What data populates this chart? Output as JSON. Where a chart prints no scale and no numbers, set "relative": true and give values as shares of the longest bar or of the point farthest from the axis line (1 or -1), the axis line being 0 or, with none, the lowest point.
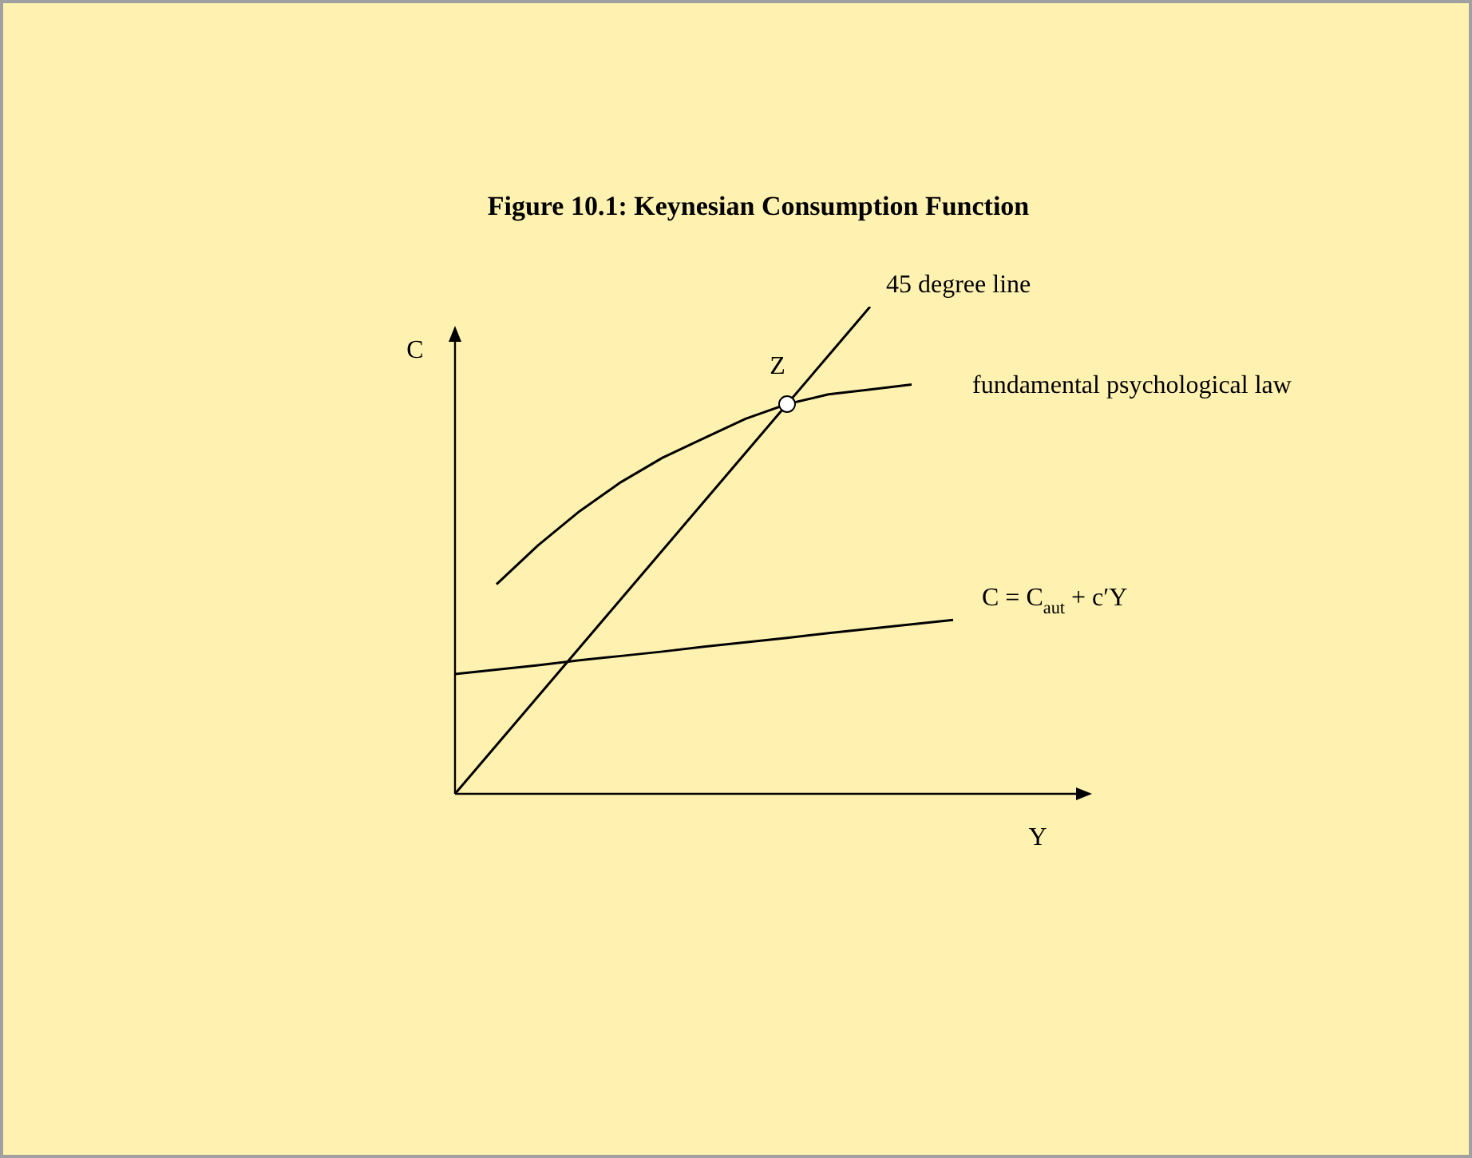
{
  "chart_data": {
    "type": "line",
    "relative": true,
    "title": "Figure 10.1: Keynesian Consumption Function",
    "xlabel": "Y",
    "ylabel": "C",
    "categories": [
      null,
      null,
      null,
      null,
      null,
      null,
      null,
      null,
      null,
      null,
      null,
      null,
      null,
      null,
      null,
      null
    ],
    "series": [
      {
        "name": "45 degree line",
        "color": "#000000",
        "values": [
          0,
          0.1,
          0.2,
          0.3,
          0.4,
          0.5,
          0.6,
          0.7,
          0.8,
          0.9,
          1.0,
          null,
          null,
          null,
          null,
          null
        ]
      },
      {
        "name": "fundamental psychological law",
        "color": "#000000",
        "values": [
          null,
          0.43,
          0.51,
          0.58,
          0.64,
          0.69,
          0.73,
          0.77,
          0.8,
          0.82,
          0.83,
          0.84,
          null,
          null,
          null,
          null
        ]
      },
      {
        "name": "C = C$_{aut}$ + c′Y",
        "color": "#000000",
        "values": [
          0.246,
          0.255,
          0.264,
          0.274,
          0.283,
          0.292,
          0.302,
          0.311,
          0.32,
          0.33,
          0.339,
          0.348,
          0.357,
          null,
          null,
          null
        ]
      }
    ],
    "annotations": [
      "Z"
    ],
    "marker": "none",
    "legend": false,
    "grid": false
  }
}
